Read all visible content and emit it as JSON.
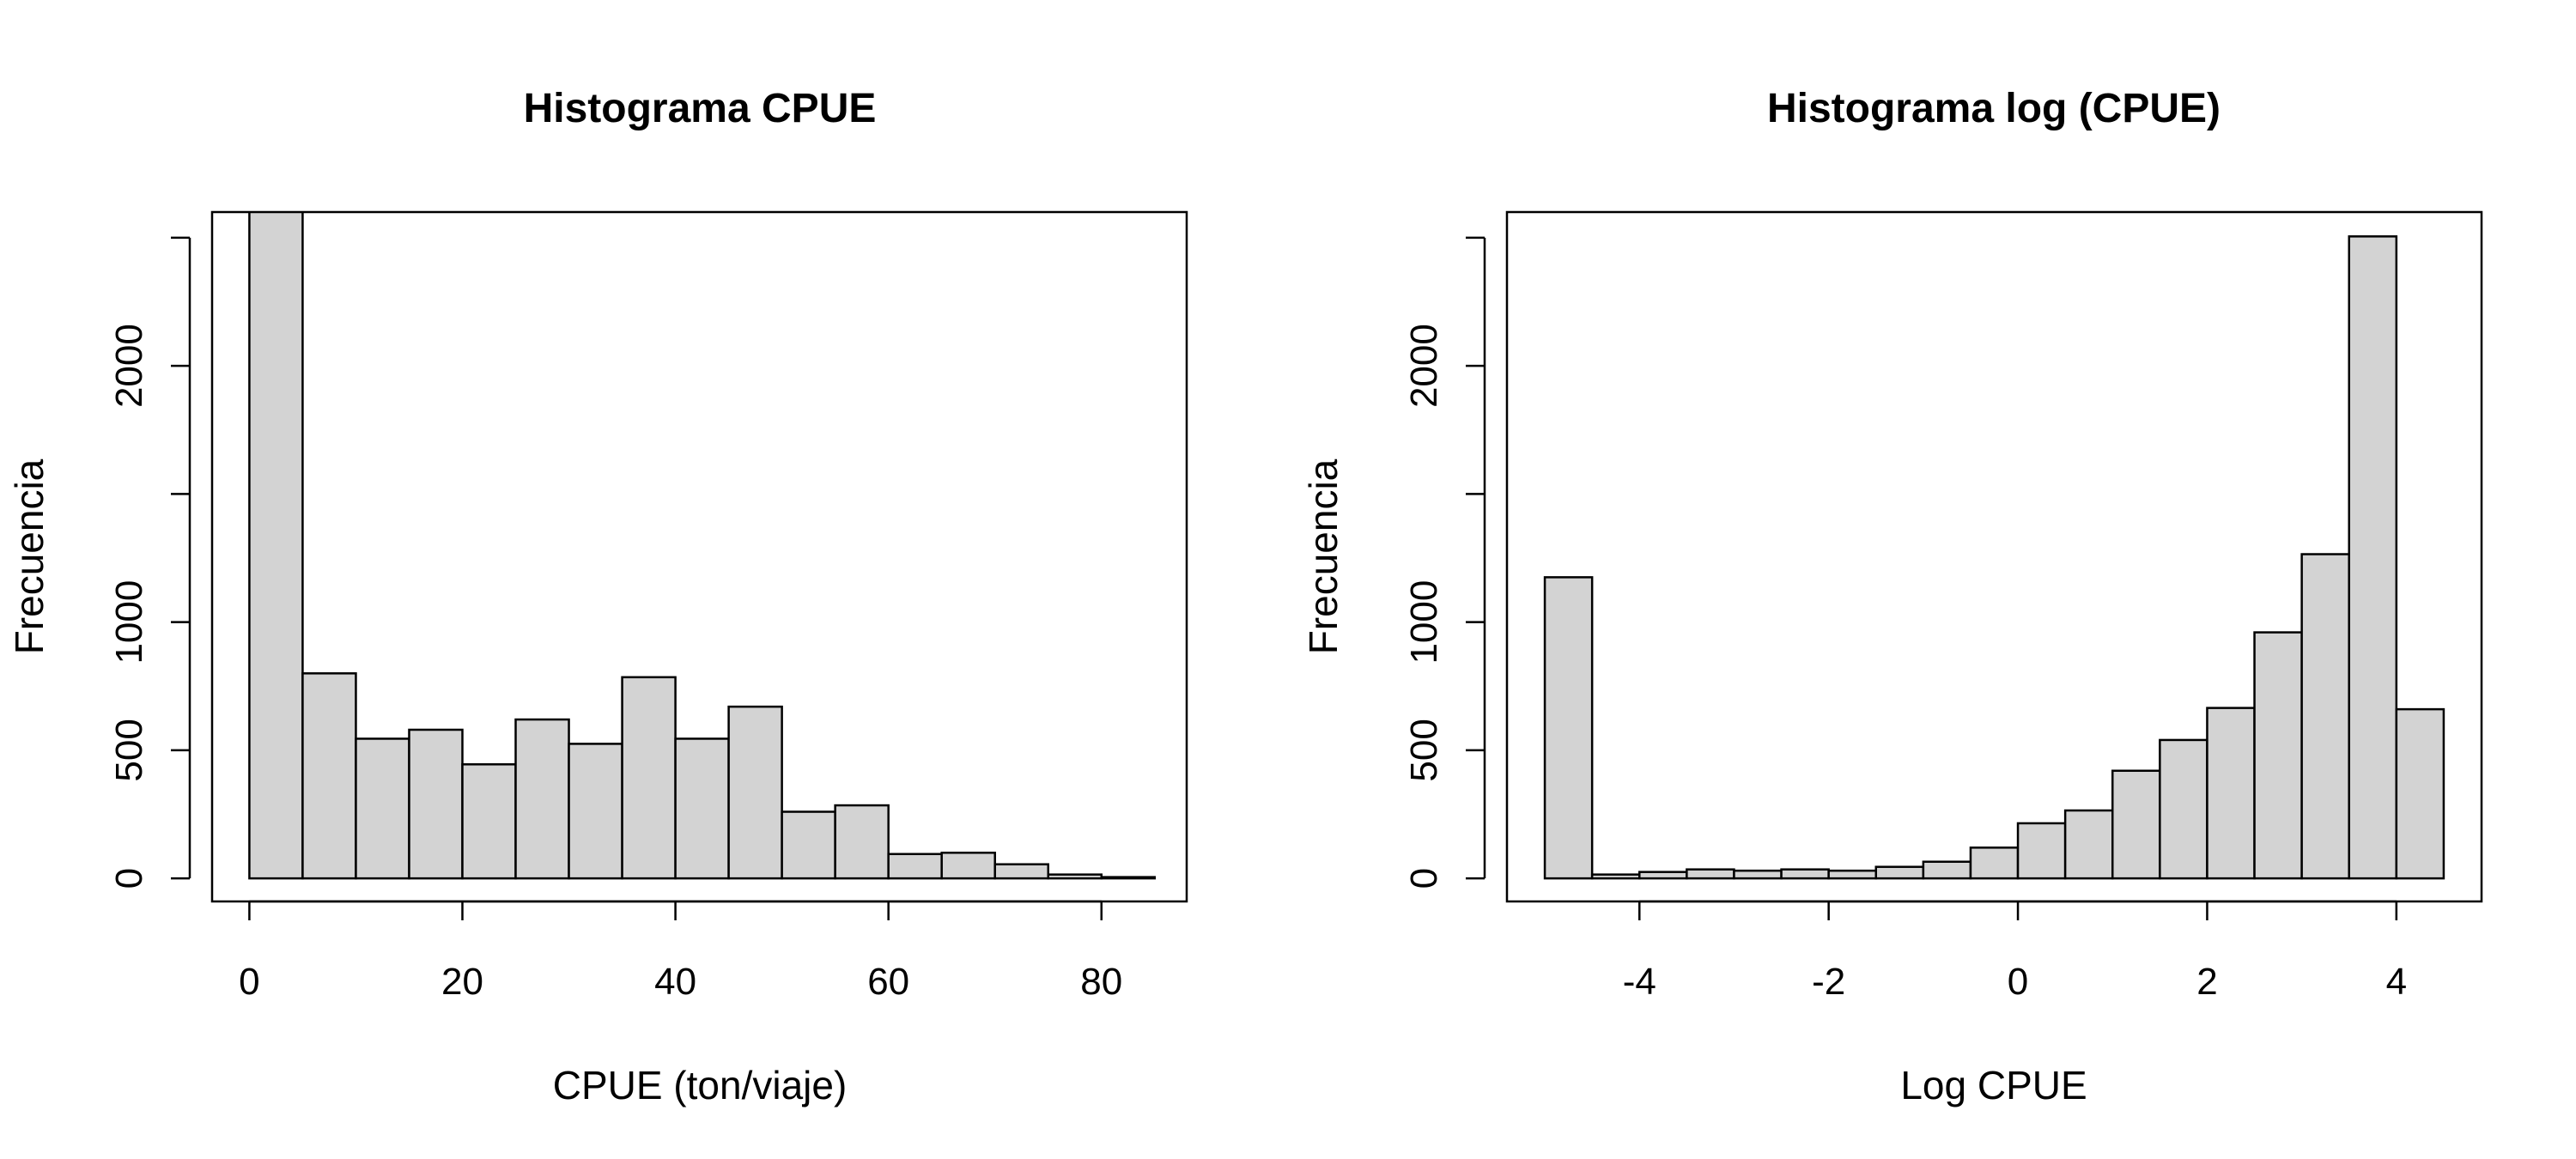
{
  "chart_data": [
    {
      "type": "bar",
      "title": "Histograma CPUE",
      "xlabel": "CPUE (ton/viaje)",
      "ylabel": "Frecuencia",
      "bin_width": 5,
      "bins": [
        [
          0,
          5
        ],
        [
          5,
          10
        ],
        [
          10,
          15
        ],
        [
          15,
          20
        ],
        [
          20,
          25
        ],
        [
          25,
          30
        ],
        [
          30,
          35
        ],
        [
          35,
          40
        ],
        [
          40,
          45
        ],
        [
          45,
          50
        ],
        [
          50,
          55
        ],
        [
          55,
          60
        ],
        [
          60,
          65
        ],
        [
          65,
          70
        ],
        [
          70,
          75
        ],
        [
          75,
          80
        ],
        [
          80,
          85
        ]
      ],
      "values": [
        2610,
        800,
        545,
        580,
        445,
        620,
        525,
        785,
        545,
        670,
        260,
        285,
        95,
        100,
        55,
        15,
        5
      ],
      "xlim": [
        -3.5,
        88
      ],
      "ylim": [
        -90,
        2600
      ],
      "x_ticks": [
        0,
        20,
        40,
        60,
        80
      ],
      "x_tick_labels": [
        "0",
        "20",
        "40",
        "60",
        "80"
      ],
      "y_ticks": [
        0,
        500,
        1000,
        1500,
        2000,
        2500
      ],
      "y_tick_labels": [
        "0",
        "500",
        "1000",
        "",
        "2000",
        ""
      ],
      "fill_color": "#d3d3d3",
      "edge_color": "#000000"
    },
    {
      "type": "bar",
      "title": "Histograma log (CPUE)",
      "xlabel": "Log CPUE",
      "ylabel": "Frecuencia",
      "bin_width": 0.5,
      "bins": [
        [
          -5,
          -4.5
        ],
        [
          -4.5,
          -4
        ],
        [
          -4,
          -3.5
        ],
        [
          -3.5,
          -3
        ],
        [
          -3,
          -2.5
        ],
        [
          -2.5,
          -2
        ],
        [
          -2,
          -1.5
        ],
        [
          -1.5,
          -1
        ],
        [
          -1,
          -0.5
        ],
        [
          -0.5,
          0
        ],
        [
          0,
          0.5
        ],
        [
          0.5,
          1
        ],
        [
          1,
          1.5
        ],
        [
          1.5,
          2
        ],
        [
          2,
          2.5
        ],
        [
          2.5,
          3
        ],
        [
          3,
          3.5
        ],
        [
          3.5,
          4
        ],
        [
          4,
          4.5
        ]
      ],
      "values": [
        1175,
        15,
        25,
        35,
        30,
        35,
        30,
        45,
        65,
        120,
        215,
        265,
        420,
        540,
        665,
        960,
        1265,
        2505,
        660
      ],
      "xlim": [
        -5.4,
        4.9
      ],
      "ylim": [
        -90,
        2600
      ],
      "x_ticks": [
        -4,
        -2,
        0,
        2,
        4
      ],
      "x_tick_labels": [
        "-4",
        "-2",
        "0",
        "2",
        "4"
      ],
      "y_ticks": [
        0,
        500,
        1000,
        1500,
        2000,
        2500
      ],
      "y_tick_labels": [
        "0",
        "500",
        "1000",
        "",
        "2000",
        ""
      ],
      "fill_color": "#d3d3d3",
      "edge_color": "#000000"
    }
  ]
}
